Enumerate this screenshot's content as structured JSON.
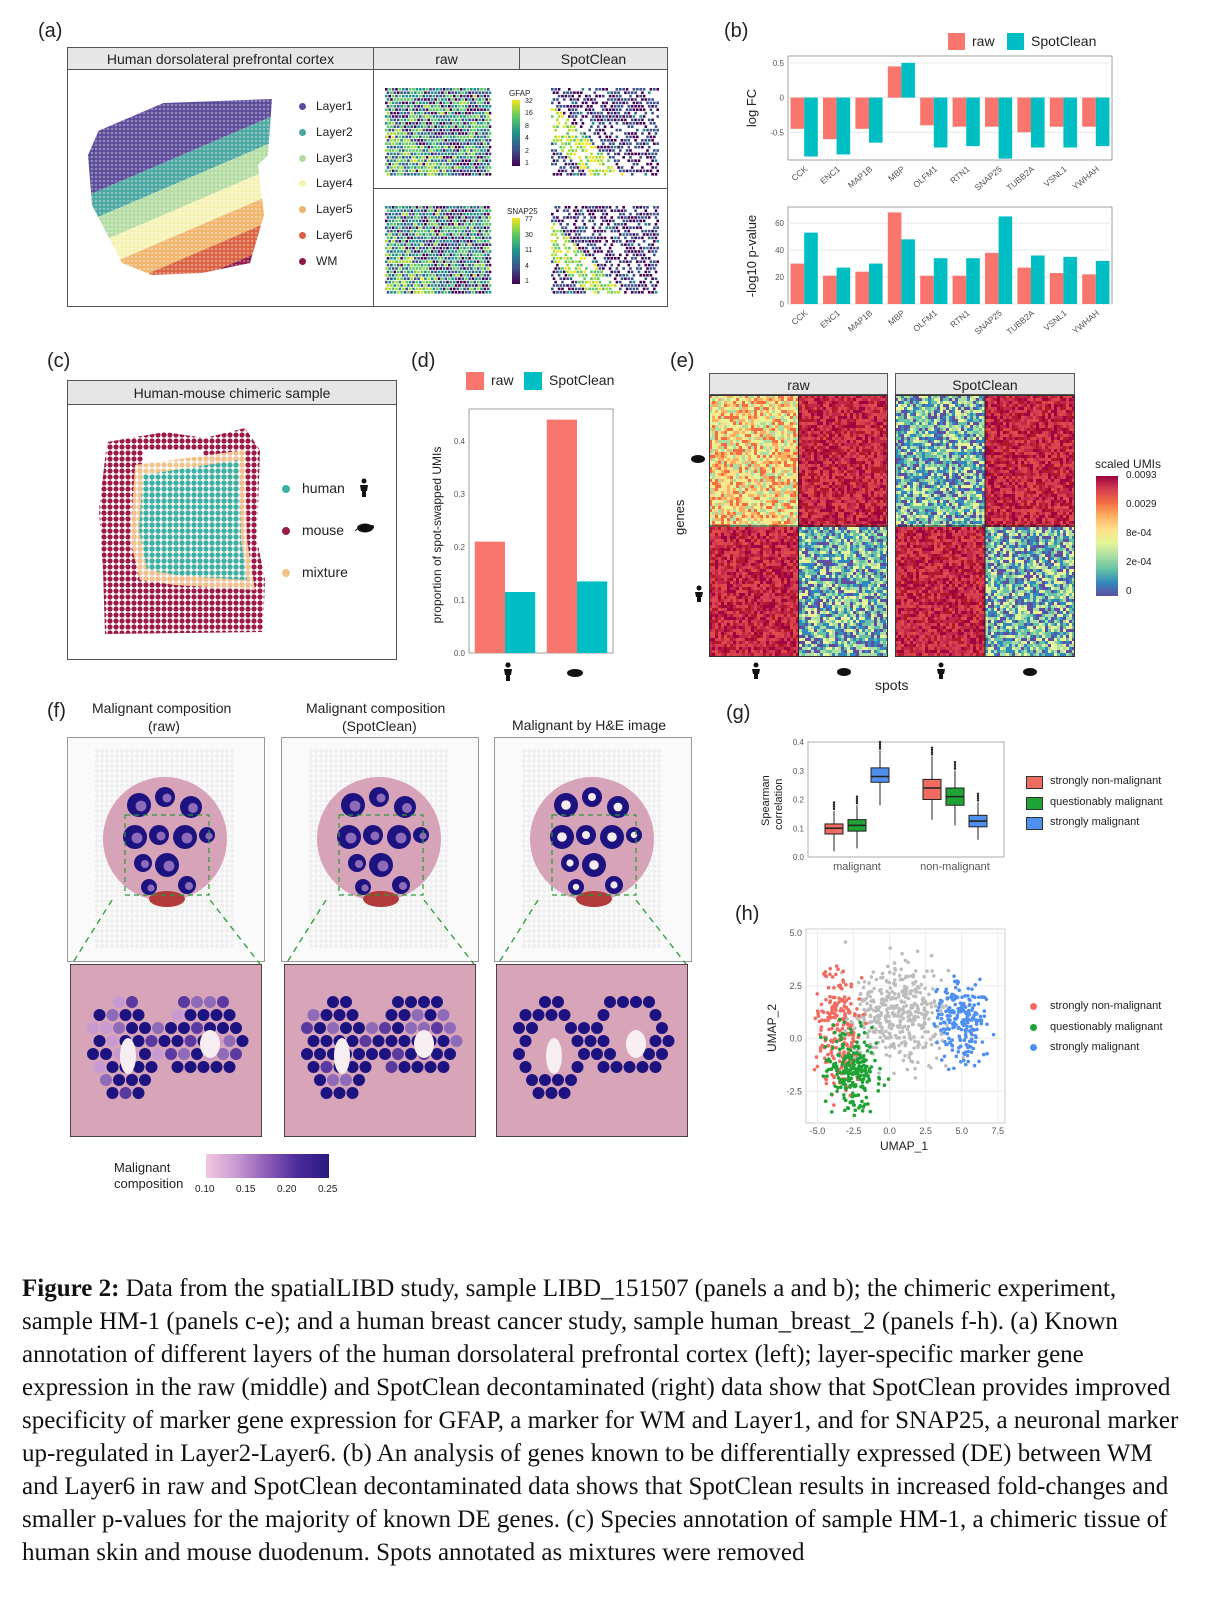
{
  "panels": {
    "a": {
      "label": "(a)",
      "strip_left": "Human dorsolateral prefrontal cortex",
      "strip_raw": "raw",
      "strip_spotclean": "SpotClean",
      "layers": [
        {
          "name": "Layer1",
          "color": "#5b4a9a"
        },
        {
          "name": "Layer2",
          "color": "#4aa6a0"
        },
        {
          "name": "Layer3",
          "color": "#b4dca2"
        },
        {
          "name": "Layer4",
          "color": "#f6f2b4"
        },
        {
          "name": "Layer5",
          "color": "#f0b46a"
        },
        {
          "name": "Layer6",
          "color": "#d9603f"
        },
        {
          "name": "WM",
          "color": "#8e1748"
        }
      ],
      "gfap_label": "GFAP",
      "gfap_ticks": [
        "32",
        "16",
        "8",
        "4",
        "2",
        "1"
      ],
      "snap_label": "SNAP25",
      "snap_ticks": [
        "77",
        "30",
        "11",
        "4",
        "1"
      ]
    },
    "b": {
      "label": "(b)",
      "legend_raw": "raw",
      "legend_spotclean": "SpotClean",
      "top_ylabel": "log FC",
      "bottom_ylabel": "-log10 p-value"
    },
    "c": {
      "label": "(c)",
      "strip": "Human-mouse chimeric sample",
      "legend": [
        {
          "name": "human",
          "color": "#39b2a4"
        },
        {
          "name": "mouse",
          "color": "#9b1a47"
        },
        {
          "name": "mixture",
          "color": "#f1c28a"
        }
      ]
    },
    "d": {
      "label": "(d)",
      "legend_raw": "raw",
      "legend_spotclean": "SpotClean",
      "ylabel": "proportion of spot-swapped UMIs"
    },
    "e": {
      "label": "(e)",
      "strip_raw": "raw",
      "strip_spotclean": "SpotClean",
      "ylabel": "genes",
      "xlabel": "spots",
      "scale_title": "scaled UMIs",
      "scale_ticks": [
        "0.0093",
        "0.0029",
        "8e-04",
        "2e-04",
        "0"
      ]
    },
    "f": {
      "label": "(f)",
      "title1_line1": "Malignant composition",
      "title1_line2": "(raw)",
      "title2_line1": "Malignant composition",
      "title2_line2": "(SpotClean)",
      "title3": "Malignant by H&E image",
      "scale_title_line1": "Malignant",
      "scale_title_line2": "composition",
      "scale_ticks": [
        "0.10",
        "0.15",
        "0.20",
        "0.25"
      ]
    },
    "g": {
      "label": "(g)",
      "ylabel_line1": "Spearman",
      "ylabel_line2": "correlation",
      "legend": [
        {
          "name": "strongly non-malignant",
          "color": "#f06b60"
        },
        {
          "name": "questionably malignant",
          "color": "#1ea334"
        },
        {
          "name": "strongly malignant",
          "color": "#4f8ff0"
        }
      ]
    },
    "h": {
      "label": "(h)",
      "xlabel": "UMAP_1",
      "ylabel": "UMAP_2",
      "legend": [
        {
          "name": "strongly non-malignant",
          "color": "#f06b60"
        },
        {
          "name": "questionably malignant",
          "color": "#1ea334"
        },
        {
          "name": "strongly malignant",
          "color": "#4f8ff0"
        }
      ]
    }
  },
  "chart_data": [
    {
      "type": "bar",
      "panel": "b-top",
      "categories": [
        "CCK",
        "ENC1",
        "MAP1B",
        "MBP",
        "OLFM1",
        "RTN1",
        "SNAP25",
        "TUBB2A",
        "VSNL1",
        "YWHAH"
      ],
      "series": [
        {
          "name": "raw",
          "values": [
            -0.45,
            -0.6,
            -0.45,
            0.45,
            -0.4,
            -0.42,
            -0.42,
            -0.5,
            -0.42,
            -0.42
          ]
        },
        {
          "name": "SpotClean",
          "values": [
            -0.85,
            -0.82,
            -0.65,
            0.5,
            -0.72,
            -0.7,
            -0.88,
            -0.72,
            -0.72,
            -0.7
          ]
        }
      ],
      "ylabel": "log FC",
      "ylim": [
        -0.9,
        0.6
      ],
      "yticks": [
        0.5,
        0.0,
        -0.5
      ],
      "grid": true,
      "colors": [
        "#f8766d",
        "#00bfc4"
      ]
    },
    {
      "type": "bar",
      "panel": "b-bottom",
      "categories": [
        "CCK",
        "ENC1",
        "MAP1B",
        "MBP",
        "OLFM1",
        "RTN1",
        "SNAP25",
        "TUBB2A",
        "VSNL1",
        "YWHAH"
      ],
      "series": [
        {
          "name": "raw",
          "values": [
            30,
            21,
            24,
            68,
            21,
            21,
            38,
            27,
            23,
            22
          ]
        },
        {
          "name": "SpotClean",
          "values": [
            53,
            27,
            30,
            48,
            34,
            34,
            65,
            36,
            35,
            32
          ]
        }
      ],
      "ylabel": "-log10 p-value",
      "ylim": [
        0,
        72
      ],
      "yticks": [
        0,
        20,
        40,
        60
      ],
      "grid": true,
      "colors": [
        "#f8766d",
        "#00bfc4"
      ]
    },
    {
      "type": "bar",
      "panel": "d",
      "categories": [
        "human",
        "mouse"
      ],
      "series": [
        {
          "name": "raw",
          "values": [
            0.21,
            0.44
          ]
        },
        {
          "name": "SpotClean",
          "values": [
            0.115,
            0.135
          ]
        }
      ],
      "ylabel": "proportion of spot-swapped UMIs",
      "ylim": [
        0,
        0.46
      ],
      "yticks": [
        0.0,
        0.1,
        0.2,
        0.3,
        0.4
      ],
      "colors": [
        "#f8766d",
        "#00bfc4"
      ]
    },
    {
      "type": "box",
      "panel": "g",
      "categories": [
        "malignant",
        "non-malignant"
      ],
      "series": [
        {
          "name": "strongly non-malignant",
          "boxes": [
            {
              "min": 0.02,
              "q1": 0.08,
              "median": 0.1,
              "q3": 0.115,
              "max": 0.16
            },
            {
              "min": 0.13,
              "q1": 0.2,
              "median": 0.24,
              "q3": 0.27,
              "max": 0.35
            }
          ]
        },
        {
          "name": "questionably malignant",
          "boxes": [
            {
              "min": 0.03,
              "q1": 0.09,
              "median": 0.11,
              "q3": 0.13,
              "max": 0.18
            },
            {
              "min": 0.11,
              "q1": 0.18,
              "median": 0.21,
              "q3": 0.24,
              "max": 0.3
            }
          ]
        },
        {
          "name": "strongly malignant",
          "boxes": [
            {
              "min": 0.18,
              "q1": 0.26,
              "median": 0.28,
              "q3": 0.31,
              "max": 0.37
            },
            {
              "min": 0.06,
              "q1": 0.105,
              "median": 0.125,
              "q3": 0.145,
              "max": 0.19
            }
          ]
        }
      ],
      "ylim": [
        0,
        0.4
      ],
      "yticks": [
        0.0,
        0.1,
        0.2,
        0.3,
        0.4
      ],
      "colors": [
        "#f06b60",
        "#1ea334",
        "#4f8ff0"
      ]
    },
    {
      "type": "scatter",
      "panel": "h",
      "xlabel": "UMAP_1",
      "ylabel": "UMAP_2",
      "xlim": [
        -5.8,
        8
      ],
      "ylim": [
        -4,
        5.2
      ],
      "xticks": [
        "-5.0",
        "-2.5",
        "0.0",
        "2.5",
        "5.0",
        "7.5"
      ],
      "yticks": [
        "5.0",
        "2.5",
        "0.0",
        "-2.5"
      ],
      "clusters": [
        {
          "name": "strongly non-malignant",
          "center": [
            -3.5,
            0.5
          ],
          "spread": [
            1.1,
            2.0
          ]
        },
        {
          "name": "questionably malignant",
          "center": [
            -2.5,
            -1.5
          ],
          "spread": [
            1.3,
            1.4
          ]
        },
        {
          "name": "strongly malignant",
          "center": [
            5.0,
            0.8
          ],
          "spread": [
            1.3,
            1.4
          ]
        },
        {
          "name": "other",
          "center": [
            0.5,
            1.2
          ],
          "spread": [
            2.5,
            1.8
          ]
        }
      ],
      "colors": [
        "#f06b60",
        "#1ea334",
        "#4f8ff0",
        "#bdbdbd"
      ]
    }
  ],
  "caption": {
    "label": "Figure 2:",
    "text": " Data from the spatialLIBD study, sample LIBD_151507 (panels a and b); the chimeric experiment, sample HM-1 (panels c-e); and a human breast cancer study, sample human_breast_2 (panels f-h).  (a) Known annotation of different layers of the human dorsolateral prefrontal cortex (left); layer-specific marker gene expression in the raw (middle) and SpotClean decontaminated (right) data show that SpotClean provides improved specificity of marker gene expression for GFAP, a marker for WM and Layer1, and for SNAP25, a neuronal marker up-regulated in Layer2-Layer6. (b) An analysis of genes known to be differentially expressed (DE) between WM and Layer6 in raw and SpotClean decontaminated data shows that SpotClean results in increased fold-changes and smaller p-values for the majority of known DE genes. (c) Species annotation of sample HM-1, a chimeric tissue of human skin and mouse duodenum. Spots annotated as mixtures were removed"
  }
}
